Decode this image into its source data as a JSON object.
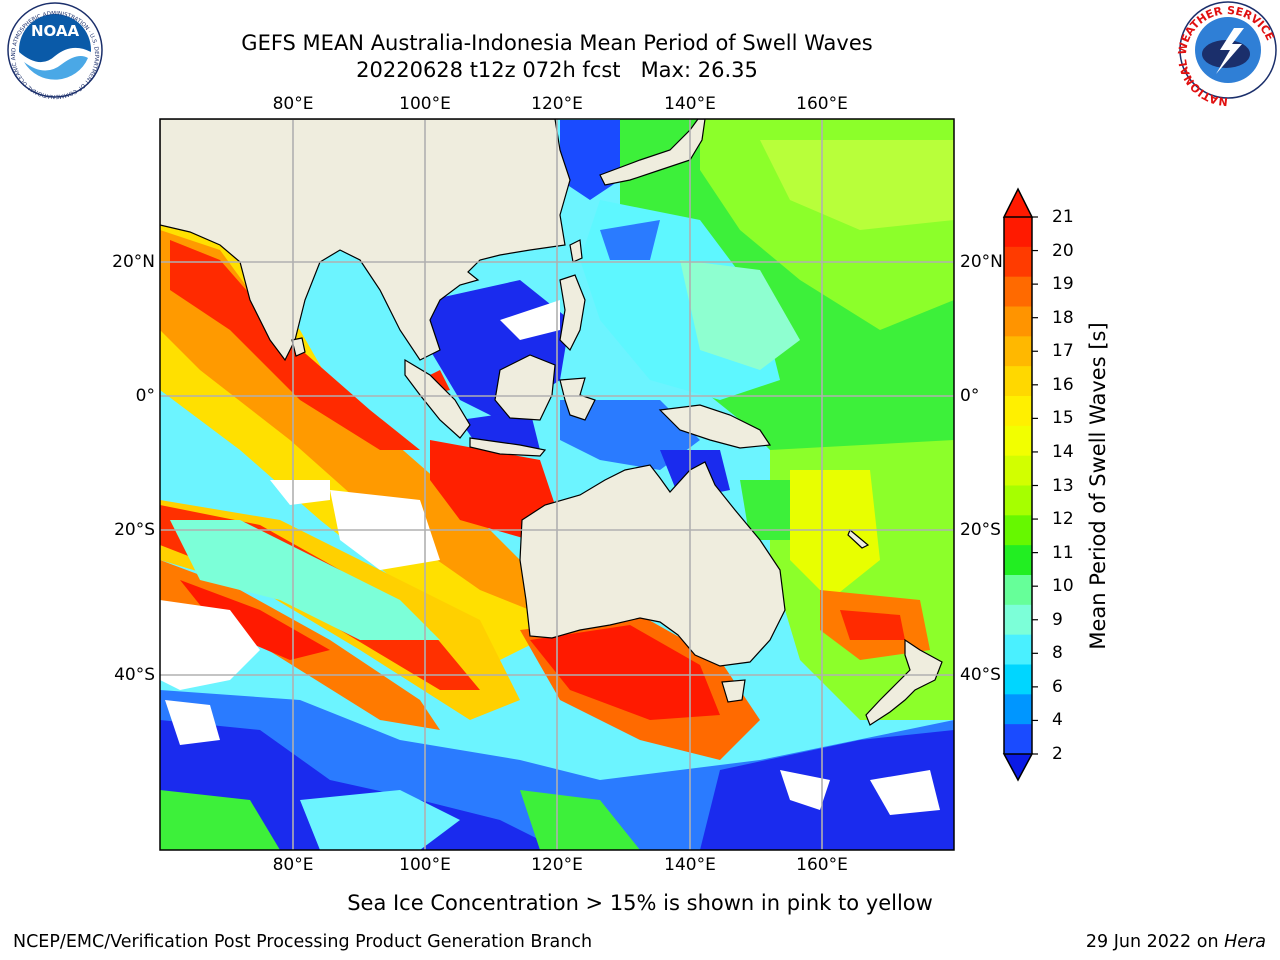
{
  "title": {
    "line1": "GEFS MEAN Australia-Indonesia Mean Period of Swell Waves",
    "line2": "20220628 t12z 072h fcst   Max: 26.35"
  },
  "map": {
    "lon_ticks": [
      "80°E",
      "100°E",
      "120°E",
      "140°E",
      "160°E"
    ],
    "lat_ticks": [
      "20°N",
      "0°",
      "20°S",
      "40°S"
    ],
    "colors": {
      "land": "#efedde",
      "grid": "#b0b0b0",
      "low_period": "#0a1ae6",
      "high_period": "#ff1a00"
    }
  },
  "colorbar": {
    "label": "Mean Period of Swell Waves [s]",
    "ticks": [
      "21",
      "20",
      "19",
      "18",
      "17",
      "16",
      "15",
      "14",
      "13",
      "12",
      "11",
      "10",
      "9",
      "8",
      "6",
      "4",
      "2"
    ],
    "colors": [
      "#ff1a00",
      "#ff3b00",
      "#ff6a00",
      "#ff9400",
      "#ffb800",
      "#ffd800",
      "#fff000",
      "#f2ff00",
      "#d2ff00",
      "#a6ff00",
      "#66f800",
      "#22ee22",
      "#66ff99",
      "#7cffd8",
      "#4af0ff",
      "#00d6ff",
      "#0096ff",
      "#1a4bff"
    ],
    "min_color": "#0a1ae6",
    "max_color": "#ff1a00"
  },
  "logos": {
    "noaa_text": "NOAA",
    "noaa_ring": "NATIONAL OCEANIC AND ATMOSPHERIC ADMINISTRATION · U.S. DEPARTMENT OF COMMERCE",
    "nws_ring": "NATIONAL WEATHER SERVICE"
  },
  "footer": {
    "note": "Sea Ice Concentration > 15% is shown in pink to yellow",
    "left": "NCEP/EMC/Verification Post Processing Product Generation Branch",
    "date": "29 Jun 2022 on",
    "host": "Hera"
  }
}
